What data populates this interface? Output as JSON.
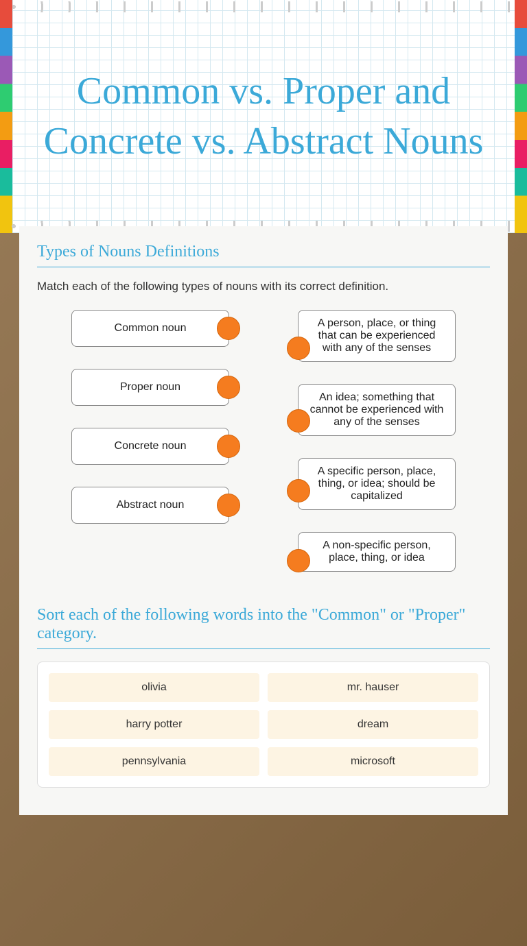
{
  "title": "Common vs. Proper and Concrete vs. Abstract Nouns",
  "section1_title": "Types of Nouns Definitions",
  "section1_instruction": "Match each of the following types of nouns with its correct definition.",
  "match_left": [
    "Common noun",
    "Proper noun",
    "Concrete noun",
    "Abstract noun"
  ],
  "match_right": [
    "A person, place, or thing that can be experienced with any of the senses",
    "An idea; something that cannot be experienced with any of the senses",
    "A specific person, place, thing, or idea; should be capitalized",
    "A non-specific person, place, thing, or idea"
  ],
  "section2_title": "Sort each of the following words into the \"Common\" or \"Proper\" category.",
  "sort_words": [
    "olivia",
    "mr. hauser",
    "harry potter",
    "dream",
    "pennsylvania",
    "microsoft"
  ],
  "colors": {
    "accent": "#3ba9d8",
    "dot": "#f57c1f",
    "chip_bg": "#fdf4e3"
  }
}
